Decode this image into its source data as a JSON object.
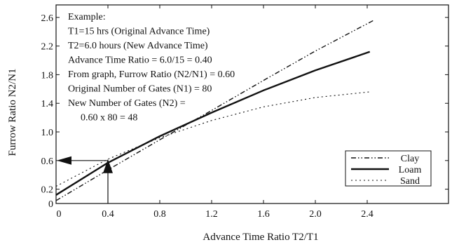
{
  "chart_data": {
    "type": "line",
    "xlabel": "Advance Time Ratio T2/T1",
    "ylabel": "Furrow Ratio N2/N1",
    "xlim": [
      0,
      2.75
    ],
    "ylim": [
      0,
      2.75
    ],
    "x_ticks": [
      "0",
      "0.4",
      "0.8",
      "1.2",
      "1.6",
      "2.0",
      "2.4"
    ],
    "y_ticks": [
      "0",
      "0.2",
      "0.6",
      "1.0",
      "1.4",
      "1.8",
      "2.2",
      "2.6"
    ],
    "x_tick_values": [
      0,
      0.4,
      0.8,
      1.2,
      1.6,
      2.0,
      2.4
    ],
    "y_tick_values": [
      0,
      0.2,
      0.6,
      1.0,
      1.4,
      1.8,
      2.2,
      2.6
    ],
    "grid": false,
    "legend_position": "bottom-right",
    "series": [
      {
        "name": "Clay",
        "style": "dash-dot-dot",
        "x": [
          0,
          0.4,
          0.8,
          1.2,
          1.6,
          2.0,
          2.45
        ],
        "y": [
          0.04,
          0.47,
          0.89,
          1.3,
          1.72,
          2.13,
          2.56
        ]
      },
      {
        "name": "Loam",
        "style": "solid",
        "x": [
          0,
          0.4,
          0.8,
          1.2,
          1.6,
          2.0,
          2.42
        ],
        "y": [
          0.12,
          0.57,
          0.94,
          1.27,
          1.58,
          1.86,
          2.12
        ]
      },
      {
        "name": "Sand",
        "style": "dotted",
        "x": [
          0,
          0.4,
          0.8,
          1.2,
          1.6,
          2.0,
          2.42
        ],
        "y": [
          0.24,
          0.62,
          0.92,
          1.16,
          1.35,
          1.48,
          1.56
        ]
      }
    ],
    "annotation_lines": [
      "Example:",
      "T1=15 hrs (Original Advance Time)",
      "T2=6.0 hours (New Advance Time)",
      "Advance Time Ratio = 6.0/15 = 0.40",
      "From graph, Furrow Ratio (N2/N1) = 0.60",
      "Original Number of Gates (N1) = 80",
      "New Number of Gates (N2) =",
      "0.60 x 80 = 48"
    ],
    "example": {
      "x": 0.4,
      "y": 0.6
    }
  }
}
